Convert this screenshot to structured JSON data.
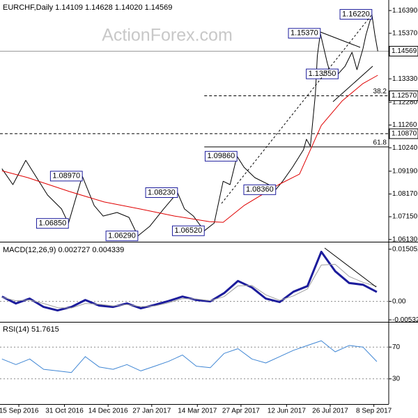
{
  "chart_data": [
    {
      "type": "line",
      "title": "EURCHF,Daily  1.14109 1.14628 1.14020 1.14569",
      "watermark": "ActionForex.com",
      "xlim": [
        "2016-08-27",
        "2017-09-23"
      ],
      "ylim": [
        1.0606,
        1.168
      ],
      "yticks": [
        {
          "value": 1.1639,
          "label": "1.16390"
        },
        {
          "value": 1.1537,
          "label": "1.15370"
        },
        {
          "value": 1.1333,
          "label": "1.13330"
        },
        {
          "value": 1.1228,
          "label": "1.12280"
        },
        {
          "value": 1.1126,
          "label": "1.11260"
        },
        {
          "value": 1.1024,
          "label": "1.10240"
        },
        {
          "value": 1.0919,
          "label": "1.09190"
        },
        {
          "value": 1.0817,
          "label": "1.08170"
        },
        {
          "value": 1.0715,
          "label": "1.07150"
        },
        {
          "value": 1.0613,
          "label": "1.06130"
        }
      ],
      "series": [
        {
          "color": "#000000",
          "x": [
            "2016-08-29",
            "2016-09-09",
            "2016-09-22",
            "2016-10-14",
            "2016-10-28",
            "2016-11-04",
            "2016-11-18",
            "2016-11-30",
            "2016-12-09",
            "2016-12-23",
            "2017-01-04",
            "2017-01-13",
            "2017-01-25",
            "2017-02-08",
            "2017-02-22",
            "2017-03-01",
            "2017-03-10",
            "2017-03-21",
            "2017-03-31",
            "2017-04-09",
            "2017-04-16",
            "2017-04-23",
            "2017-04-30",
            "2017-05-11",
            "2017-05-25",
            "2017-06-01",
            "2017-06-08",
            "2017-06-18",
            "2017-06-29",
            "2017-07-02",
            "2017-07-06",
            "2017-07-11",
            "2017-07-13",
            "2017-07-16",
            "2017-07-23",
            "2017-07-27",
            "2017-08-03",
            "2017-08-10",
            "2017-08-17",
            "2017-08-22",
            "2017-08-28",
            "2017-08-31",
            "2017-09-06",
            "2017-09-09",
            "2017-09-12"
          ],
          "values": [
            1.093,
            1.0859,
            1.0968,
            1.0812,
            1.075,
            1.0685,
            1.0897,
            1.0765,
            1.0718,
            1.0734,
            1.0712,
            1.0629,
            1.0672,
            1.075,
            1.0823,
            1.075,
            1.0718,
            1.0652,
            1.0687,
            1.0874,
            1.0859,
            1.0986,
            1.0937,
            1.089,
            1.0859,
            1.0836,
            1.0874,
            1.0937,
            1.1015,
            1.1062,
            1.1031,
            1.1265,
            1.1436,
            1.1537,
            1.1405,
            1.1343,
            1.1355,
            1.139,
            1.1452,
            1.1374,
            1.1468,
            1.153,
            1.1622,
            1.153,
            1.14569
          ]
        },
        {
          "color": "#e00000",
          "x": [
            "2016-08-29",
            "2016-09-24",
            "2016-11-05",
            "2016-12-10",
            "2017-01-15",
            "2017-02-19",
            "2017-03-26",
            "2017-04-09",
            "2017-04-30",
            "2017-06-04",
            "2017-06-25",
            "2017-07-17",
            "2017-08-07",
            "2017-08-28",
            "2017-09-12"
          ],
          "values": [
            1.0921,
            1.089,
            1.0828,
            1.0781,
            1.075,
            1.0718,
            1.0693,
            1.069,
            1.0765,
            1.0859,
            1.0906,
            1.1124,
            1.1234,
            1.1312,
            1.1349
          ]
        }
      ],
      "levels": [
        {
          "value": 1.14569,
          "label": "1.14569",
          "line": "solid"
        },
        {
          "value": 1.1257,
          "label": "1.12570",
          "line": "none"
        },
        {
          "value": 1.1087,
          "label": "1.10870",
          "line": "dashed"
        }
      ],
      "retracement": {
        "from": "2017-03-21",
        "levels": [
          {
            "value": 1.1257,
            "label": "38.2",
            "line": "dashed"
          },
          {
            "value": 1.1028,
            "label": "61.8",
            "line": "solid"
          }
        ]
      },
      "annotations": [
        {
          "x": "2016-11-18",
          "value": 1.0897,
          "label": "1.08970"
        },
        {
          "x": "2016-11-04",
          "value": 1.0685,
          "label": "1.06850"
        },
        {
          "x": "2017-02-22",
          "value": 1.0823,
          "label": "1.08230"
        },
        {
          "x": "2017-01-13",
          "value": 1.0629,
          "label": "1.06290"
        },
        {
          "x": "2017-03-21",
          "value": 1.0652,
          "label": "1.06520"
        },
        {
          "x": "2017-04-23",
          "value": 1.0986,
          "label": "1.09860"
        },
        {
          "x": "2017-06-01",
          "value": 1.0836,
          "label": "1.08360"
        },
        {
          "x": "2017-07-16",
          "value": 1.1537,
          "label": "1.15370"
        },
        {
          "x": "2017-08-03",
          "value": 1.1355,
          "label": "1.13550"
        },
        {
          "x": "2017-09-06",
          "value": 1.1622,
          "label": "1.16220"
        }
      ]
    },
    {
      "type": "line",
      "title": "MACD(12,26,9) 0.002727 0.004339",
      "xlim": [
        "2016-08-27",
        "2017-09-23"
      ],
      "x": [
        "2016-08-29",
        "2016-09-12",
        "2016-09-26",
        "2016-10-10",
        "2016-10-24",
        "2016-11-07",
        "2016-11-21",
        "2016-12-05",
        "2016-12-19",
        "2017-01-02",
        "2017-01-16",
        "2017-01-30",
        "2017-02-13",
        "2017-02-27",
        "2017-03-13",
        "2017-03-27",
        "2017-04-10",
        "2017-04-24",
        "2017-05-08",
        "2017-05-22",
        "2017-06-05",
        "2017-06-19",
        "2017-07-03",
        "2017-07-17",
        "2017-07-31",
        "2017-08-14",
        "2017-08-28",
        "2017-09-11"
      ],
      "ylim": [
        -0.0059,
        0.0166
      ],
      "yticks": [
        0.015052,
        {
          "value": 0,
          "label": "0.00"
        },
        -0.005321
      ],
      "zero_line": true,
      "series": [
        {
          "color": "#1c1c9c",
          "width": 3,
          "values": [
            0.0014,
            -0.0006,
            0.0008,
            -0.0016,
            -0.0026,
            -0.0016,
            0.0004,
            -0.0012,
            -0.0016,
            -0.0006,
            -0.002,
            -0.001,
            0.0001,
            0.0014,
            0.0004,
            0.0,
            0.0024,
            0.0059,
            0.004,
            0.0008,
            -0.0002,
            0.0028,
            0.0044,
            0.0143,
            0.0087,
            0.0053,
            0.0048,
            0.002727
          ]
        },
        {
          "color": "#a0a0a0",
          "width": 1,
          "values": [
            0.0012,
            0.0002,
            0.0004,
            -0.0006,
            -0.0018,
            -0.0019,
            -0.0006,
            -0.0008,
            -0.0013,
            -0.0009,
            -0.0015,
            -0.0013,
            -0.0004,
            0.0008,
            0.0007,
            0.0002,
            0.0014,
            0.0045,
            0.0046,
            0.0019,
            0.0003,
            0.0016,
            0.0036,
            0.0105,
            0.0107,
            0.0072,
            0.0055,
            0.004339
          ]
        }
      ]
    },
    {
      "type": "line",
      "title": "RSI(14) 51.7615",
      "xlim": [
        "2016-08-27",
        "2017-09-23"
      ],
      "x": [
        "2016-08-29",
        "2016-09-12",
        "2016-09-26",
        "2016-10-10",
        "2016-10-24",
        "2016-11-07",
        "2016-11-21",
        "2016-12-05",
        "2016-12-19",
        "2017-01-02",
        "2017-01-16",
        "2017-01-30",
        "2017-02-13",
        "2017-02-27",
        "2017-03-13",
        "2017-03-27",
        "2017-04-10",
        "2017-04-24",
        "2017-05-08",
        "2017-05-22",
        "2017-06-05",
        "2017-06-19",
        "2017-07-03",
        "2017-07-17",
        "2017-07-31",
        "2017-08-14",
        "2017-08-28",
        "2017-09-11"
      ],
      "ylim": [
        0,
        100
      ],
      "yticks": [
        70,
        30
      ],
      "grid": true,
      "xticks": [
        {
          "value": "2016-09-15",
          "label": "15 Sep 2016"
        },
        {
          "value": "2016-10-31",
          "label": "31 Oct 2016"
        },
        {
          "value": "2016-12-14",
          "label": "14 Dec 2016"
        },
        {
          "value": "2017-01-27",
          "label": "27 Jan 2017"
        },
        {
          "value": "2017-03-14",
          "label": "14 Mar 2017"
        },
        {
          "value": "2017-04-27",
          "label": "27 Apr 2017"
        },
        {
          "value": "2017-06-12",
          "label": "12 Jun 2017"
        },
        {
          "value": "2017-07-26",
          "label": "26 Jul 2017"
        },
        {
          "value": "2017-09-08",
          "label": "8 Sep 2017"
        }
      ],
      "series": [
        {
          "color": "#3f86d4",
          "width": 1,
          "values": [
            55,
            48,
            55,
            42,
            40,
            38,
            58,
            45,
            42,
            48,
            40,
            46,
            52,
            60,
            46,
            44,
            62,
            68,
            55,
            50,
            58,
            66,
            72,
            78,
            64,
            72,
            70,
            51.7615
          ]
        }
      ]
    }
  ]
}
